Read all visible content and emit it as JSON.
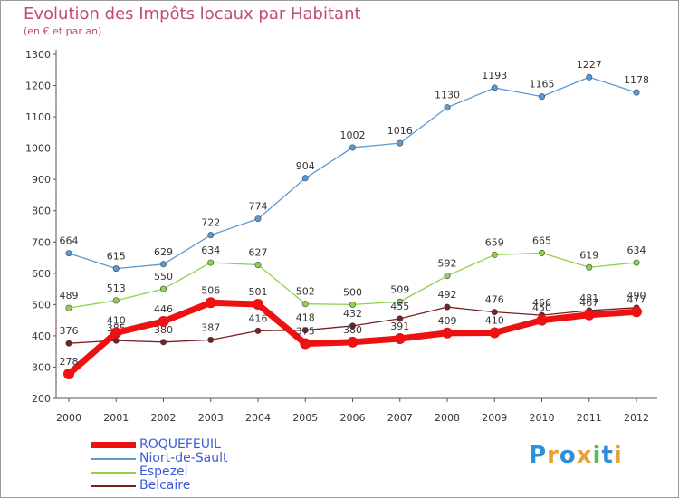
{
  "title": "Evolution des Impôts locaux par Habitant",
  "subtitle": "(en € et par an)",
  "logo": {
    "letters": [
      "P",
      "r",
      "o",
      "x",
      "i",
      "t",
      "i"
    ],
    "colors": [
      "#2f8fd8",
      "#e8a13a",
      "#2f8fd8",
      "#e8a13a",
      "#5cb85c",
      "#2f8fd8",
      "#e8a13a"
    ]
  },
  "chart_data": {
    "type": "line",
    "categories": [
      "2000",
      "2001",
      "2002",
      "2003",
      "2004",
      "2005",
      "2006",
      "2007",
      "2008",
      "2009",
      "2010",
      "2011",
      "2012"
    ],
    "ylim": [
      200,
      1300
    ],
    "yticks": [
      "200",
      "300",
      "400",
      "500",
      "600",
      "700",
      "800",
      "900",
      "1000",
      "1100",
      "1200",
      "1300"
    ],
    "grid": false,
    "legend_position": "bottom-left",
    "series": [
      {
        "name": "Niort-de-Sault",
        "color": "#5b9bd5",
        "values": [
          664,
          615,
          629,
          722,
          774,
          904,
          1002,
          1016,
          1130,
          1193,
          1165,
          1227,
          1178
        ]
      },
      {
        "name": "Espezel",
        "color": "#8fd14f",
        "values": [
          489,
          513,
          550,
          634,
          627,
          502,
          500,
          509,
          592,
          659,
          665,
          619,
          634
        ]
      },
      {
        "name": "Belcaire",
        "color": "#7a1f22",
        "values": [
          376,
          385,
          380,
          387,
          416,
          418,
          432,
          455,
          492,
          476,
          466,
          481,
          490
        ]
      },
      {
        "name": "ROQUEFEUIL",
        "color": "#ee1111",
        "values": [
          278,
          410,
          446,
          506,
          501,
          375,
          380,
          391,
          409,
          410,
          450,
          467,
          477
        ]
      }
    ],
    "legend_order": [
      "ROQUEFEUIL",
      "Niort-de-Sault",
      "Espezel",
      "Belcaire"
    ]
  }
}
